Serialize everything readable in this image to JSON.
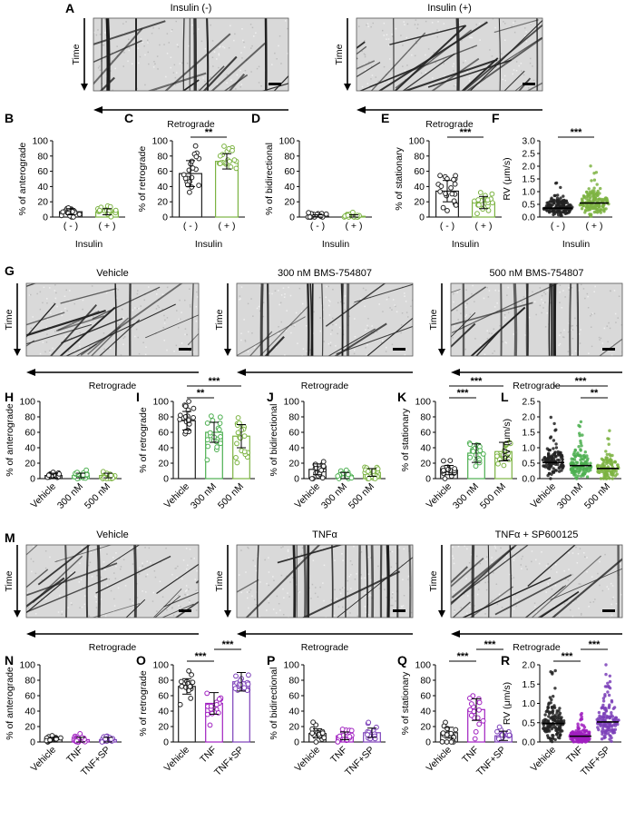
{
  "kymo_rows": [
    {
      "label": "A",
      "time_label": "Time",
      "direction_label": "Retrograde",
      "images": [
        {
          "title": "Insulin (-)",
          "seed": 11,
          "verticals": 9,
          "diagonals": 14
        },
        {
          "title": "Insulin (+)",
          "seed": 23,
          "verticals": 4,
          "diagonals": 26
        }
      ]
    },
    {
      "label": "G",
      "time_label": "Time",
      "direction_label": "Retrograde",
      "images": [
        {
          "title": "Vehicle",
          "seed": 31,
          "verticals": 3,
          "diagonals": 22
        },
        {
          "title": "300 nM BMS-754807",
          "seed": 41,
          "verticals": 10,
          "diagonals": 10
        },
        {
          "title": "500 nM BMS-754807",
          "seed": 53,
          "verticals": 12,
          "diagonals": 9
        }
      ]
    },
    {
      "label": "M",
      "time_label": "Time",
      "direction_label": "Retrograde",
      "images": [
        {
          "title": "Vehicle",
          "seed": 61,
          "verticals": 4,
          "diagonals": 20
        },
        {
          "title": "TNFα",
          "seed": 71,
          "verticals": 14,
          "diagonals": 5
        },
        {
          "title": "TNFα + SP600125",
          "seed": 83,
          "verticals": 4,
          "diagonals": 18
        }
      ]
    }
  ],
  "chart_rows": [
    {
      "xlabel": "Insulin",
      "categories": [
        "( - )",
        "( + )"
      ],
      "colors": [
        "#222222",
        "#7cb342"
      ],
      "rotate_ticks": false,
      "panels": [
        {
          "label": "B",
          "ylabel": "% of anterograde",
          "type": "bar",
          "ylim": [
            0,
            100
          ],
          "yticks": [
            0,
            20,
            40,
            60,
            80,
            100
          ],
          "means": [
            7,
            7
          ],
          "sd": [
            4,
            4
          ],
          "n": 20,
          "sig": []
        },
        {
          "label": "C",
          "ylabel": "% of retrograde",
          "type": "bar",
          "ylim": [
            0,
            100
          ],
          "yticks": [
            0,
            20,
            40,
            60,
            80,
            100
          ],
          "means": [
            57,
            73
          ],
          "sd": [
            17,
            10
          ],
          "n": 20,
          "sig": [
            {
              "from": 0,
              "to": 1,
              "text": "**"
            }
          ]
        },
        {
          "label": "D",
          "ylabel": "% of bidirectional",
          "type": "bar",
          "ylim": [
            0,
            100
          ],
          "yticks": [
            0,
            20,
            40,
            60,
            80,
            100
          ],
          "means": [
            1,
            1
          ],
          "sd": [
            2,
            2
          ],
          "n": 20,
          "sig": []
        },
        {
          "label": "E",
          "ylabel": "% of stationary",
          "type": "bar",
          "ylim": [
            0,
            100
          ],
          "yticks": [
            0,
            20,
            40,
            60,
            80,
            100
          ],
          "means": [
            34,
            19
          ],
          "sd": [
            14,
            8
          ],
          "n": 20,
          "sig": [
            {
              "from": 0,
              "to": 1,
              "text": "***"
            }
          ]
        },
        {
          "label": "F",
          "ylabel": "RV (μm/s)",
          "type": "scatter",
          "ylim": [
            0,
            3.0
          ],
          "yticks": [
            0.0,
            0.5,
            1.0,
            1.5,
            2.0,
            2.5,
            3.0
          ],
          "yformat": 1,
          "means": [
            0.35,
            0.55
          ],
          "sd": [
            0.22,
            0.3
          ],
          "n": 160,
          "sig": [
            {
              "from": 0,
              "to": 1,
              "text": "***"
            }
          ]
        }
      ]
    },
    {
      "xlabel": "",
      "categories": [
        "Vehicle",
        "300 nM",
        "500 nM"
      ],
      "colors": [
        "#222222",
        "#4caf50",
        "#7cb342"
      ],
      "rotate_ticks": true,
      "panels": [
        {
          "label": "H",
          "ylabel": "% of anterograde",
          "type": "bar",
          "ylim": [
            0,
            100
          ],
          "yticks": [
            0,
            20,
            40,
            60,
            80,
            100
          ],
          "means": [
            4,
            4,
            4
          ],
          "sd": [
            3,
            3,
            3
          ],
          "n": 20,
          "sig": []
        },
        {
          "label": "I",
          "ylabel": "% of retrograde",
          "type": "bar",
          "ylim": [
            0,
            100
          ],
          "yticks": [
            0,
            20,
            40,
            60,
            80,
            100
          ],
          "means": [
            75,
            60,
            55
          ],
          "sd": [
            12,
            13,
            15
          ],
          "n": 20,
          "sig": [
            {
              "from": 0,
              "to": 1,
              "text": "**"
            },
            {
              "from": 0,
              "to": 2,
              "text": "***"
            }
          ]
        },
        {
          "label": "J",
          "ylabel": "% of bidirectional",
          "type": "bar",
          "ylim": [
            0,
            100
          ],
          "yticks": [
            0,
            20,
            40,
            60,
            80,
            100
          ],
          "means": [
            12,
            4,
            8
          ],
          "sd": [
            7,
            4,
            5
          ],
          "n": 20,
          "sig": []
        },
        {
          "label": "K",
          "ylabel": "% of stationary",
          "type": "bar",
          "ylim": [
            0,
            100
          ],
          "yticks": [
            0,
            20,
            40,
            60,
            80,
            100
          ],
          "means": [
            11,
            33,
            35
          ],
          "sd": [
            6,
            12,
            12
          ],
          "n": 20,
          "sig": [
            {
              "from": 0,
              "to": 1,
              "text": "***"
            },
            {
              "from": 0,
              "to": 2,
              "text": "***"
            }
          ]
        },
        {
          "label": "L",
          "ylabel": "RV (μm/s)",
          "type": "scatter",
          "ylim": [
            0,
            2.5
          ],
          "yticks": [
            0.0,
            0.5,
            1.0,
            1.5,
            2.0,
            2.5
          ],
          "yformat": 1,
          "means": [
            0.52,
            0.42,
            0.33
          ],
          "sd": [
            0.3,
            0.3,
            0.25
          ],
          "n": 120,
          "sig": [
            {
              "from": 1,
              "to": 2,
              "text": "**"
            },
            {
              "from": 0,
              "to": 2,
              "text": "***"
            }
          ]
        }
      ]
    },
    {
      "xlabel": "",
      "categories": [
        "Vehicle",
        "TNF",
        "TNF+SP"
      ],
      "colors": [
        "#222222",
        "#a020c0",
        "#7b3fb8"
      ],
      "rotate_ticks": true,
      "panels": [
        {
          "label": "N",
          "ylabel": "% of anterograde",
          "type": "bar",
          "ylim": [
            0,
            100
          ],
          "yticks": [
            0,
            20,
            40,
            60,
            80,
            100
          ],
          "means": [
            3,
            3,
            3
          ],
          "sd": [
            3,
            3,
            3
          ],
          "n": 18,
          "sig": []
        },
        {
          "label": "O",
          "ylabel": "% of retrograde",
          "type": "bar",
          "ylim": [
            0,
            100
          ],
          "yticks": [
            0,
            20,
            40,
            60,
            80,
            100
          ],
          "means": [
            72,
            50,
            78
          ],
          "sd": [
            10,
            14,
            12
          ],
          "n": 18,
          "sig": [
            {
              "from": 0,
              "to": 1,
              "text": "***"
            },
            {
              "from": 1,
              "to": 2,
              "text": "***"
            }
          ]
        },
        {
          "label": "P",
          "ylabel": "% of bidirectional",
          "type": "bar",
          "ylim": [
            0,
            100
          ],
          "yticks": [
            0,
            20,
            40,
            60,
            80,
            100
          ],
          "means": [
            11,
            8,
            12
          ],
          "sd": [
            6,
            5,
            6
          ],
          "n": 18,
          "sig": []
        },
        {
          "label": "Q",
          "ylabel": "% of stationary",
          "type": "bar",
          "ylim": [
            0,
            100
          ],
          "yticks": [
            0,
            20,
            40,
            60,
            80,
            100
          ],
          "means": [
            12,
            42,
            8
          ],
          "sd": [
            7,
            14,
            6
          ],
          "n": 18,
          "sig": [
            {
              "from": 0,
              "to": 1,
              "text": "***"
            },
            {
              "from": 1,
              "to": 2,
              "text": "***"
            }
          ]
        },
        {
          "label": "R",
          "ylabel": "RV (μm/s)",
          "type": "scatter",
          "ylim": [
            0,
            2.0
          ],
          "yticks": [
            0.0,
            0.5,
            1.0,
            1.5,
            2.0
          ],
          "yformat": 1,
          "means": [
            0.48,
            0.15,
            0.52
          ],
          "sd": [
            0.28,
            0.12,
            0.3
          ],
          "n": 140,
          "sig": [
            {
              "from": 0,
              "to": 1,
              "text": "***"
            },
            {
              "from": 1,
              "to": 2,
              "text": "***"
            }
          ]
        }
      ]
    }
  ]
}
